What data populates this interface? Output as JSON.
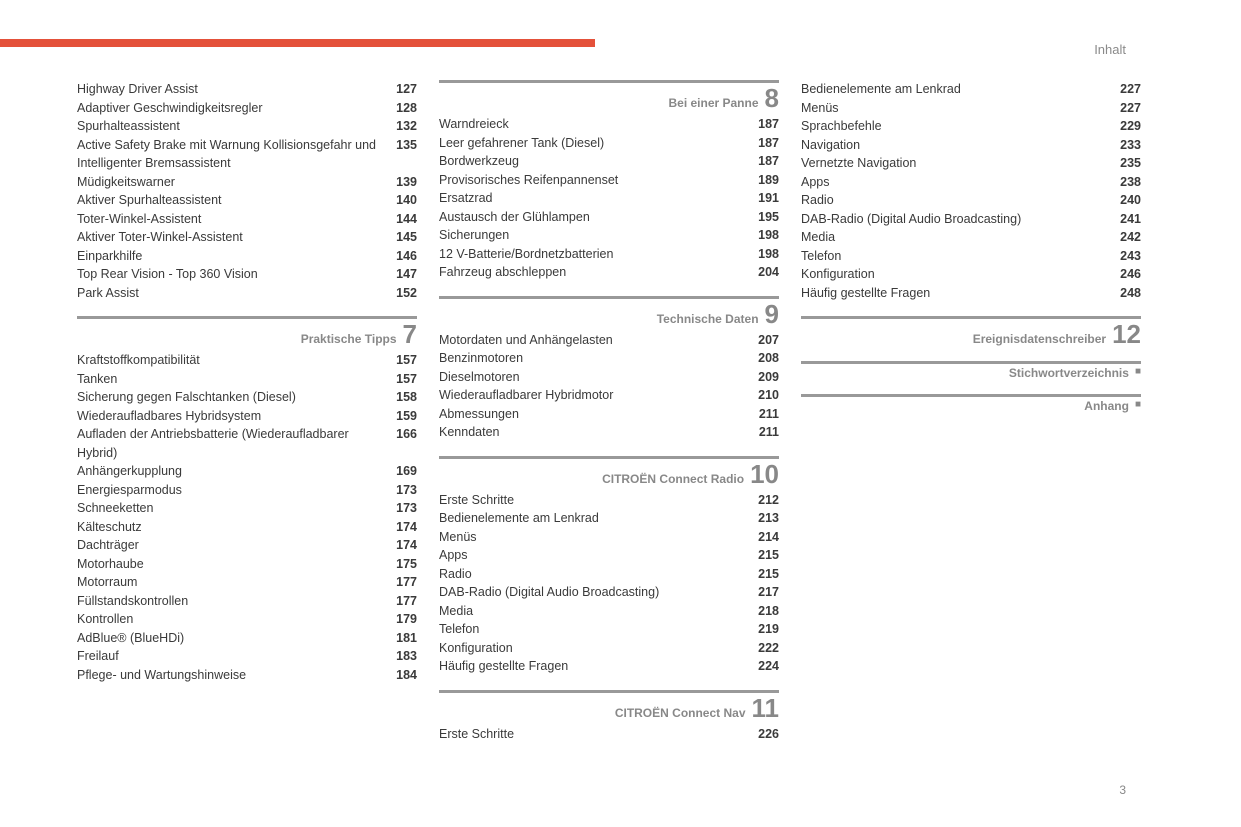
{
  "header": {
    "label": "Inhalt"
  },
  "page_number": "3",
  "columns": [
    {
      "blocks": [
        {
          "type": "entries",
          "items": [
            {
              "label": "Highway Driver Assist",
              "page": "127"
            },
            {
              "label": "Adaptiver Geschwindigkeitsregler",
              "page": "128"
            },
            {
              "label": "Spurhalteassistent",
              "page": "132"
            },
            {
              "label": "Active Safety Brake mit Warnung Kollisionsgefahr und Intelligenter Bremsassistent",
              "page": "135"
            },
            {
              "label": "Müdigkeitswarner",
              "page": "139"
            },
            {
              "label": "Aktiver Spurhalteassistent",
              "page": "140"
            },
            {
              "label": "Toter-Winkel-Assistent",
              "page": "144"
            },
            {
              "label": "Aktiver Toter-Winkel-Assistent",
              "page": "145"
            },
            {
              "label": "Einparkhilfe",
              "page": "146"
            },
            {
              "label": "Top Rear Vision - Top 360 Vision",
              "page": "147"
            },
            {
              "label": "Park Assist",
              "page": "152"
            }
          ]
        },
        {
          "type": "section",
          "title": "Praktische Tipps",
          "num": "7",
          "items": [
            {
              "label": "Kraftstoffkompatibilität",
              "page": "157"
            },
            {
              "label": "Tanken",
              "page": "157"
            },
            {
              "label": "Sicherung gegen Falschtanken (Diesel)",
              "page": "158"
            },
            {
              "label": "Wiederaufladbares Hybridsystem",
              "page": "159"
            },
            {
              "label": "Aufladen der Antriebsbatterie (Wiederaufladbarer Hybrid)",
              "page": "166"
            },
            {
              "label": "Anhängerkupplung",
              "page": "169"
            },
            {
              "label": "Energiesparmodus",
              "page": "173"
            },
            {
              "label": "Schneeketten",
              "page": "173"
            },
            {
              "label": "Kälteschutz",
              "page": "174"
            },
            {
              "label": "Dachträger",
              "page": "174"
            },
            {
              "label": "Motorhaube",
              "page": "175"
            },
            {
              "label": "Motorraum",
              "page": "177"
            },
            {
              "label": "Füllstandskontrollen",
              "page": "177"
            },
            {
              "label": "Kontrollen",
              "page": "179"
            },
            {
              "label": "AdBlue® (BlueHDi)",
              "page": "181"
            },
            {
              "label": "Freilauf",
              "page": "183"
            },
            {
              "label": "Pflege- und Wartungshinweise",
              "page": "184"
            }
          ]
        }
      ]
    },
    {
      "blocks": [
        {
          "type": "section",
          "no_top": true,
          "title": "Bei einer Panne",
          "num": "8",
          "items": [
            {
              "label": "Warndreieck",
              "page": "187"
            },
            {
              "label": "Leer gefahrener Tank (Diesel)",
              "page": "187"
            },
            {
              "label": "Bordwerkzeug",
              "page": "187"
            },
            {
              "label": "Provisorisches Reifenpannenset",
              "page": "189"
            },
            {
              "label": "Ersatzrad",
              "page": "191"
            },
            {
              "label": "Austausch der Glühlampen",
              "page": "195"
            },
            {
              "label": "Sicherungen",
              "page": "198"
            },
            {
              "label": "12 V-Batterie/Bordnetzbatterien",
              "page": "198"
            },
            {
              "label": "Fahrzeug abschleppen",
              "page": "204"
            }
          ]
        },
        {
          "type": "section",
          "title": "Technische Daten",
          "num": "9",
          "items": [
            {
              "label": "Motordaten und Anhängelasten",
              "page": "207"
            },
            {
              "label": "Benzinmotoren",
              "page": "208"
            },
            {
              "label": "Dieselmotoren",
              "page": "209"
            },
            {
              "label": "Wiederaufladbarer Hybridmotor",
              "page": "210"
            },
            {
              "label": "Abmessungen",
              "page": "211"
            },
            {
              "label": "Kenndaten",
              "page": "211"
            }
          ]
        },
        {
          "type": "section",
          "title": "CITROËN Connect Radio",
          "num": "10",
          "items": [
            {
              "label": "Erste Schritte",
              "page": "212"
            },
            {
              "label": "Bedienelemente am Lenkrad",
              "page": "213"
            },
            {
              "label": "Menüs",
              "page": "214"
            },
            {
              "label": "Apps",
              "page": "215"
            },
            {
              "label": "Radio",
              "page": "215"
            },
            {
              "label": "DAB-Radio (Digital Audio Broadcasting)",
              "page": "217"
            },
            {
              "label": "Media",
              "page": "218"
            },
            {
              "label": "Telefon",
              "page": "219"
            },
            {
              "label": "Konfiguration",
              "page": "222"
            },
            {
              "label": "Häufig gestellte Fragen",
              "page": "224"
            }
          ]
        },
        {
          "type": "section",
          "title": "CITROËN Connect Nav",
          "num": "11",
          "items": [
            {
              "label": "Erste Schritte",
              "page": "226"
            }
          ]
        }
      ]
    },
    {
      "blocks": [
        {
          "type": "entries",
          "items": [
            {
              "label": "Bedienelemente am Lenkrad",
              "page": "227"
            },
            {
              "label": "Menüs",
              "page": "227"
            },
            {
              "label": "Sprachbefehle",
              "page": "229"
            },
            {
              "label": "Navigation",
              "page": "233"
            },
            {
              "label": "Vernetzte Navigation",
              "page": "235"
            },
            {
              "label": "Apps",
              "page": "238"
            },
            {
              "label": "Radio",
              "page": "240"
            },
            {
              "label": "DAB-Radio (Digital Audio Broadcasting)",
              "page": "241"
            },
            {
              "label": "Media",
              "page": "242"
            },
            {
              "label": "Telefon",
              "page": "243"
            },
            {
              "label": "Konfiguration",
              "page": "246"
            },
            {
              "label": "Häufig gestellte Fragen",
              "page": "248"
            }
          ]
        },
        {
          "type": "section",
          "title": "Ereignisdatenschreiber",
          "num": "12",
          "items": []
        },
        {
          "type": "section",
          "title": "Stichwortverzeichnis",
          "square": true,
          "items": []
        },
        {
          "type": "section",
          "title": "Anhang",
          "square": true,
          "items": []
        }
      ]
    }
  ]
}
